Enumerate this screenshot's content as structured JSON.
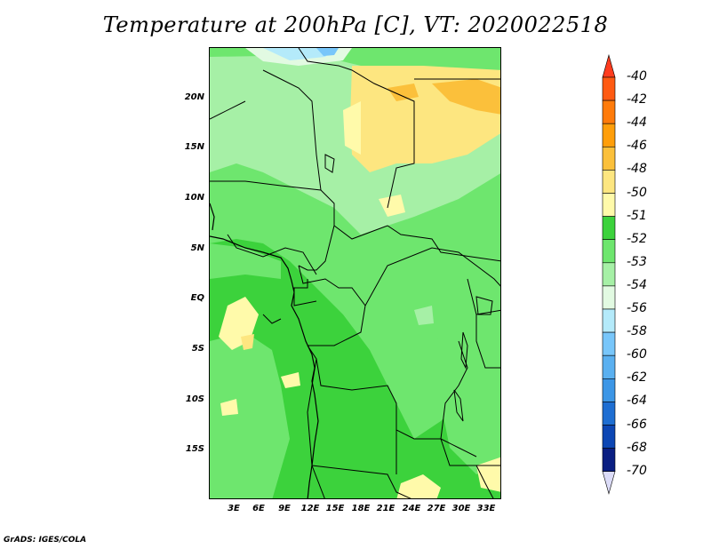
{
  "title": "Temperature at 200hPa [C], VT: 2020022518",
  "footer": "GrADS: IGES/COLA",
  "y_axis_labels": [
    "20N",
    "15N",
    "10N",
    "5N",
    "EQ",
    "5S",
    "10S",
    "15S"
  ],
  "x_axis_labels": [
    "3E",
    "6E",
    "9E",
    "12E",
    "15E",
    "18E",
    "21E",
    "24E",
    "27E",
    "30E",
    "33E"
  ],
  "colorbar": {
    "labels": [
      "-40",
      "-42",
      "-44",
      "-46",
      "-48",
      "-50",
      "-51",
      "-52",
      "-53",
      "-54",
      "-56",
      "-58",
      "-60",
      "-62",
      "-64",
      "-66",
      "-68",
      "-70"
    ],
    "colors": [
      "#ff3c1e",
      "#ff5a12",
      "#ff7b0a",
      "#ff9e0a",
      "#fbc03b",
      "#fde680",
      "#fffaaa",
      "#3cd23c",
      "#6ee66e",
      "#a6f0a6",
      "#e2fae2",
      "#b4eafa",
      "#78c6fa",
      "#5ab0f0",
      "#3c96e6",
      "#1e6ed2",
      "#0c46b4",
      "#0a1e82",
      "#dcdcf8"
    ]
  },
  "map_colors": {
    "dark_green": "#3cd23c",
    "mid_green": "#6ee66e",
    "light_green": "#a6f0a6",
    "pale_green": "#e2fae2",
    "pale_blue": "#b4eafa",
    "yellow": "#fde680",
    "light_yellow": "#fffaaa",
    "orange": "#fbc03b"
  }
}
